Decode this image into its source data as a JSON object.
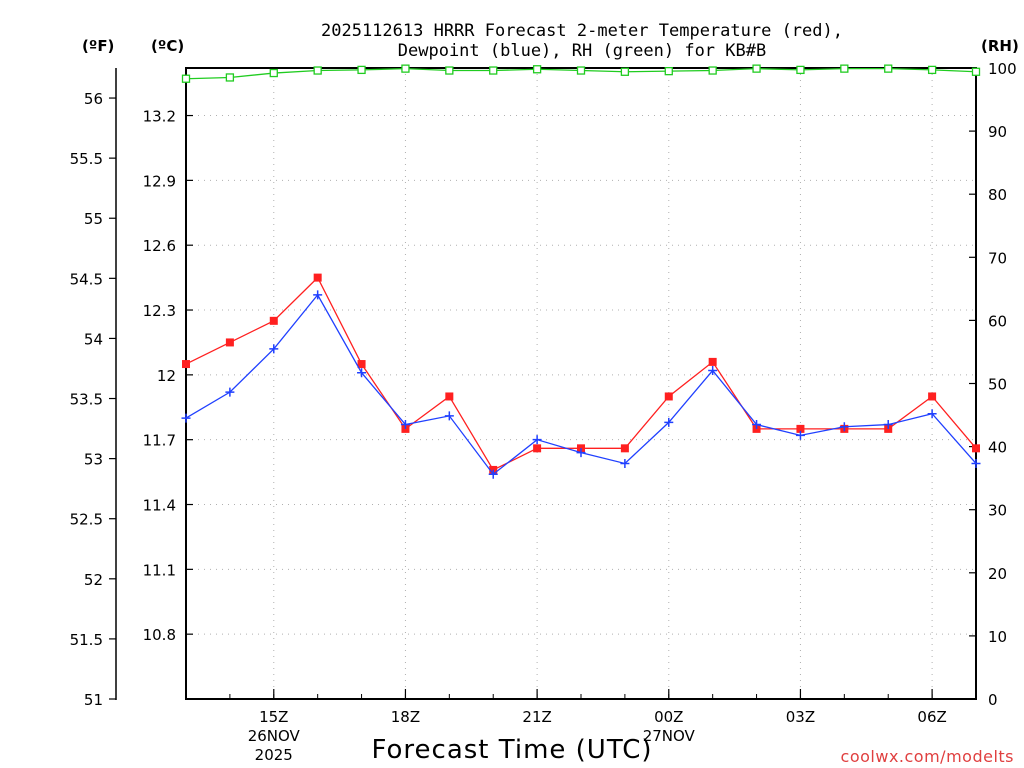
{
  "chart_data": {
    "type": "line",
    "title_line1": "2025112613 HRRR Forecast 2-meter Temperature (red),",
    "title_line2": "Dewpoint (blue), RH (green) for KB#B",
    "unit_f": "(ºF)",
    "unit_c": "(ºC)",
    "unit_rh": "(RH)",
    "xlabel": "Forecast Time (UTC)",
    "credit": "coolwx.com/modelts",
    "x_hours": [
      13,
      14,
      15,
      16,
      17,
      18,
      19,
      20,
      21,
      22,
      23,
      24,
      25,
      26,
      27,
      28,
      29,
      30,
      31
    ],
    "xlim": [
      13,
      31
    ],
    "x_ticks": [
      {
        "hour": 15,
        "label": "15Z",
        "sub1": "26NOV",
        "sub2": "2025"
      },
      {
        "hour": 18,
        "label": "18Z",
        "sub1": "",
        "sub2": ""
      },
      {
        "hour": 21,
        "label": "21Z",
        "sub1": "",
        "sub2": ""
      },
      {
        "hour": 24,
        "label": "00Z",
        "sub1": "27NOV",
        "sub2": ""
      },
      {
        "hour": 27,
        "label": "03Z",
        "sub1": "",
        "sub2": ""
      },
      {
        "hour": 30,
        "label": "06Z",
        "sub1": "",
        "sub2": ""
      }
    ],
    "y_left_f": {
      "range": [
        51,
        56.25
      ],
      "ticks": [
        51,
        51.5,
        52,
        52.5,
        53,
        53.5,
        54,
        54.5,
        55,
        55.5,
        56
      ],
      "tick_labels": [
        "51",
        "51.5",
        "52",
        "52.5",
        "53",
        "53.5",
        "54",
        "54.5",
        "55",
        "55.5",
        "56"
      ]
    },
    "y_left_c": {
      "range": [
        10.5,
        13.42
      ],
      "ticks": [
        10.8,
        11.1,
        11.4,
        11.7,
        12,
        12.3,
        12.6,
        12.9,
        13.2
      ],
      "tick_labels": [
        "10.8",
        "11.1",
        "11.4",
        "11.7",
        "12",
        "12.3",
        "12.6",
        "12.9",
        "13.2"
      ]
    },
    "y_right_rh": {
      "range": [
        0,
        100
      ],
      "ticks": [
        0,
        10,
        20,
        30,
        40,
        50,
        60,
        70,
        80,
        90,
        100
      ],
      "tick_labels": [
        "0",
        "10",
        "20",
        "30",
        "40",
        "50",
        "60",
        "70",
        "80",
        "90",
        "100"
      ]
    },
    "grid": true,
    "series": [
      {
        "name": "Temperature",
        "units": "C",
        "color": "#ff2020",
        "values": [
          12.05,
          12.15,
          12.25,
          12.45,
          12.05,
          11.75,
          11.9,
          11.56,
          11.66,
          11.66,
          11.66,
          11.9,
          12.06,
          11.75,
          11.75,
          11.75,
          11.75,
          11.9,
          11.66
        ]
      },
      {
        "name": "Dewpoint",
        "units": "C",
        "color": "#2040ff",
        "values": [
          11.8,
          11.92,
          12.12,
          12.37,
          12.01,
          11.77,
          11.81,
          11.54,
          11.7,
          11.64,
          11.59,
          11.78,
          12.02,
          11.77,
          11.72,
          11.76,
          11.77,
          11.82,
          11.59
        ]
      },
      {
        "name": "RH",
        "units": "%",
        "color": "#20cc20",
        "values": [
          98.3,
          98.5,
          99.2,
          99.6,
          99.7,
          99.9,
          99.6,
          99.6,
          99.8,
          99.6,
          99.4,
          99.5,
          99.6,
          99.9,
          99.7,
          99.9,
          99.9,
          99.7,
          99.4
        ]
      }
    ]
  }
}
